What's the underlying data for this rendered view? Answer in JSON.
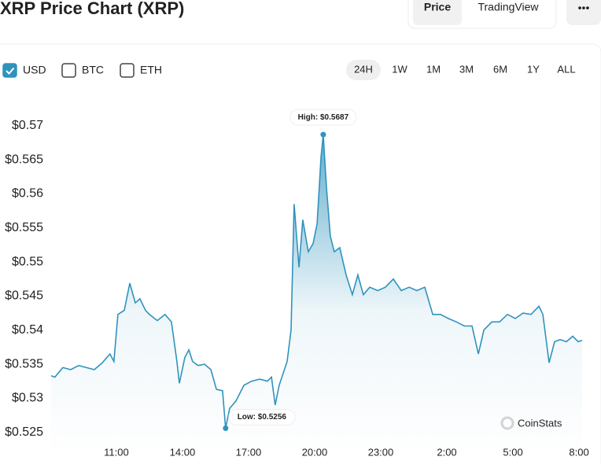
{
  "header": {
    "title": "XRP Price Chart (XRP)",
    "tabs": [
      {
        "label": "Price",
        "selected": true
      },
      {
        "label": "TradingView",
        "selected": false
      }
    ],
    "more": "•••"
  },
  "currencies": [
    {
      "label": "USD",
      "checked": true
    },
    {
      "label": "BTC",
      "checked": false
    },
    {
      "label": "ETH",
      "checked": false
    }
  ],
  "ranges": [
    {
      "label": "24H",
      "selected": true
    },
    {
      "label": "1W",
      "selected": false
    },
    {
      "label": "1M",
      "selected": false
    },
    {
      "label": "3M",
      "selected": false
    },
    {
      "label": "6M",
      "selected": false
    },
    {
      "label": "1Y",
      "selected": false
    },
    {
      "label": "ALL",
      "selected": false
    }
  ],
  "watermark": "CoinStats",
  "chart_data": {
    "type": "line",
    "x": [
      8.04,
      8.21,
      8.57,
      8.93,
      9.29,
      9.64,
      10.0,
      10.36,
      10.71,
      10.89,
      11.07,
      11.36,
      11.61,
      11.86,
      12.07,
      12.32,
      12.5,
      12.86,
      13.21,
      13.5,
      13.75,
      13.86,
      14.11,
      14.29,
      14.46,
      14.71,
      15.0,
      15.29,
      15.54,
      15.82,
      15.96,
      16.14,
      16.43,
      16.79,
      17.14,
      17.5,
      17.86,
      18.04,
      18.21,
      18.39,
      18.75,
      18.93,
      19.07,
      19.29,
      19.46,
      19.71,
      19.93,
      20.11,
      20.29,
      20.39,
      20.54,
      20.71,
      20.89,
      21.14,
      21.43,
      21.71,
      21.96,
      22.21,
      22.5,
      22.86,
      23.21,
      23.57,
      23.93,
      24.29,
      24.64,
      25.0,
      25.36,
      25.71,
      26.07,
      26.43,
      26.79,
      27.14,
      27.43,
      27.68,
      28.04,
      28.39,
      28.75,
      29.11,
      29.46,
      29.82,
      30.18,
      30.36,
      30.64,
      30.89,
      31.14,
      31.43,
      31.71,
      31.96,
      32.14
    ],
    "series": [
      {
        "name": "XRP",
        "color": "#2f93bd",
        "values": [
          0.5333,
          0.5331,
          0.5345,
          0.5342,
          0.5348,
          0.5345,
          0.5342,
          0.5352,
          0.5365,
          0.5354,
          0.5423,
          0.5429,
          0.5469,
          0.544,
          0.5446,
          0.5429,
          0.5423,
          0.5414,
          0.5423,
          0.5412,
          0.5354,
          0.5322,
          0.536,
          0.5371,
          0.5354,
          0.5348,
          0.535,
          0.5342,
          0.5313,
          0.5311,
          0.5256,
          0.5285,
          0.5296,
          0.5319,
          0.5325,
          0.5328,
          0.5325,
          0.5331,
          0.529,
          0.5319,
          0.5354,
          0.54,
          0.5585,
          0.5492,
          0.5562,
          0.5515,
          0.5527,
          0.5556,
          0.5654,
          0.5687,
          0.5608,
          0.5538,
          0.5515,
          0.5521,
          0.5481,
          0.5452,
          0.5481,
          0.5452,
          0.5463,
          0.5458,
          0.5463,
          0.5475,
          0.5458,
          0.5463,
          0.5458,
          0.5463,
          0.5423,
          0.5423,
          0.5417,
          0.5412,
          0.5406,
          0.5406,
          0.5365,
          0.54,
          0.5412,
          0.5412,
          0.5423,
          0.5417,
          0.5425,
          0.5423,
          0.5435,
          0.5423,
          0.5352,
          0.5383,
          0.5386,
          0.5383,
          0.5391,
          0.5383,
          0.5385
        ]
      }
    ],
    "xlim": [
      8.04,
      32.14
    ],
    "xticks": [
      {
        "value": 11,
        "label": "11:00"
      },
      {
        "value": 14,
        "label": "14:00"
      },
      {
        "value": 17,
        "label": "17:00"
      },
      {
        "value": 20,
        "label": "20:00"
      },
      {
        "value": 23,
        "label": "23:00"
      },
      {
        "value": 26,
        "label": "2:00"
      },
      {
        "value": 29,
        "label": "5:00"
      },
      {
        "value": 32,
        "label": "8:00"
      }
    ],
    "ylim": [
      0.5215,
      0.5746
    ],
    "yticks": [
      {
        "value": 0.525,
        "label": "$0.525"
      },
      {
        "value": 0.53,
        "label": "$0.53"
      },
      {
        "value": 0.535,
        "label": "$0.535"
      },
      {
        "value": 0.54,
        "label": "$0.54"
      },
      {
        "value": 0.545,
        "label": "$0.545"
      },
      {
        "value": 0.55,
        "label": "$0.55"
      },
      {
        "value": 0.555,
        "label": "$0.555"
      },
      {
        "value": 0.56,
        "label": "$0.56"
      },
      {
        "value": 0.565,
        "label": "$0.565"
      },
      {
        "value": 0.57,
        "label": "$0.57"
      }
    ],
    "grid": false,
    "annotations": [
      {
        "x": 20.39,
        "value": 0.5687,
        "label": "High: $0.5687"
      },
      {
        "x": 15.96,
        "value": 0.5256,
        "label": "Low: $0.5256"
      }
    ]
  }
}
